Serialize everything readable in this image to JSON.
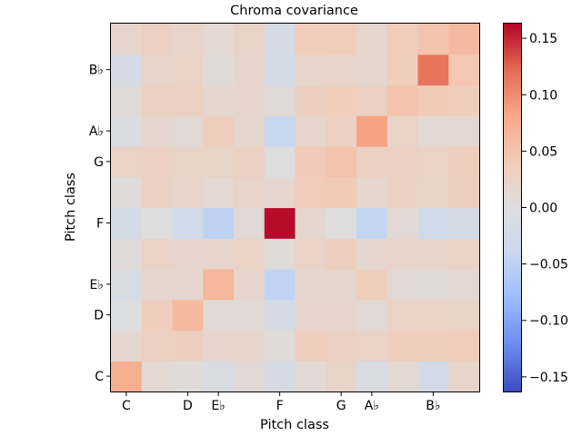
{
  "chart_data": {
    "type": "heatmap",
    "title": "Chroma covariance",
    "xlabel": "Pitch class",
    "ylabel": "Pitch class",
    "x_tick_labels": [
      "C",
      "D",
      "E♭",
      "F",
      "G",
      "A♭",
      "B♭"
    ],
    "y_tick_labels": [
      "C",
      "D",
      "E♭",
      "F",
      "G",
      "A♭",
      "B♭"
    ],
    "x_tick_index": [
      0,
      2,
      3,
      5,
      7,
      8,
      10
    ],
    "y_tick_index": [
      0,
      2,
      3,
      5,
      7,
      8,
      10
    ],
    "rows_bottom_to_top": [
      [
        0.075,
        0.012,
        0.004,
        -0.01,
        0.01,
        -0.016,
        0.01,
        0.022,
        -0.01,
        0.012,
        -0.022,
        0.02
      ],
      [
        0.015,
        0.03,
        0.032,
        0.018,
        0.02,
        0.004,
        0.034,
        0.03,
        0.025,
        0.034,
        0.034,
        0.038
      ],
      [
        -0.004,
        0.034,
        0.062,
        0.01,
        0.01,
        -0.018,
        0.018,
        0.018,
        0.01,
        0.025,
        0.025,
        0.022
      ],
      [
        -0.012,
        0.015,
        0.015,
        0.065,
        0.018,
        -0.048,
        0.015,
        0.015,
        0.035,
        0.01,
        0.006,
        0.012
      ],
      [
        0.008,
        0.025,
        0.018,
        0.02,
        0.025,
        0.004,
        0.025,
        0.032,
        0.015,
        0.02,
        0.02,
        0.025
      ],
      [
        -0.02,
        0.0,
        -0.024,
        -0.05,
        0.01,
        0.16,
        0.015,
        0.0,
        -0.045,
        0.01,
        -0.025,
        -0.018
      ],
      [
        0.004,
        0.028,
        0.02,
        0.012,
        0.02,
        0.015,
        0.038,
        0.04,
        0.015,
        0.028,
        0.022,
        0.032
      ],
      [
        0.025,
        0.03,
        0.022,
        0.022,
        0.028,
        0.0,
        0.04,
        0.05,
        0.03,
        0.03,
        0.025,
        0.034
      ],
      [
        -0.008,
        0.015,
        0.01,
        0.035,
        0.015,
        -0.04,
        0.018,
        0.03,
        0.085,
        0.025,
        0.012,
        0.012
      ],
      [
        0.008,
        0.03,
        0.03,
        0.015,
        0.018,
        0.008,
        0.032,
        0.035,
        0.03,
        0.05,
        0.04,
        0.034
      ],
      [
        -0.018,
        0.02,
        0.025,
        0.006,
        0.018,
        -0.02,
        0.02,
        0.02,
        0.015,
        0.035,
        0.115,
        0.045
      ],
      [
        0.018,
        0.03,
        0.02,
        0.012,
        0.022,
        -0.018,
        0.038,
        0.036,
        0.016,
        0.036,
        0.05,
        0.06
      ]
    ],
    "vmin": -0.163,
    "vmax": 0.163,
    "colorbar_ticks": [
      "0.15",
      "0.10",
      "0.05",
      "0.00",
      "−0.05",
      "−0.10",
      "−0.15"
    ],
    "colorbar_tick_values": [
      0.15,
      0.1,
      0.05,
      0.0,
      -0.05,
      -0.1,
      -0.15
    ],
    "colormap": "coolwarm",
    "colormap_stops": [
      "#3b4cc0",
      "#6a8bef",
      "#9abbff",
      "#c9d8f0",
      "#dddddd",
      "#f2cbb7",
      "#f7a889",
      "#e36a53",
      "#b40426"
    ],
    "grid": false
  }
}
